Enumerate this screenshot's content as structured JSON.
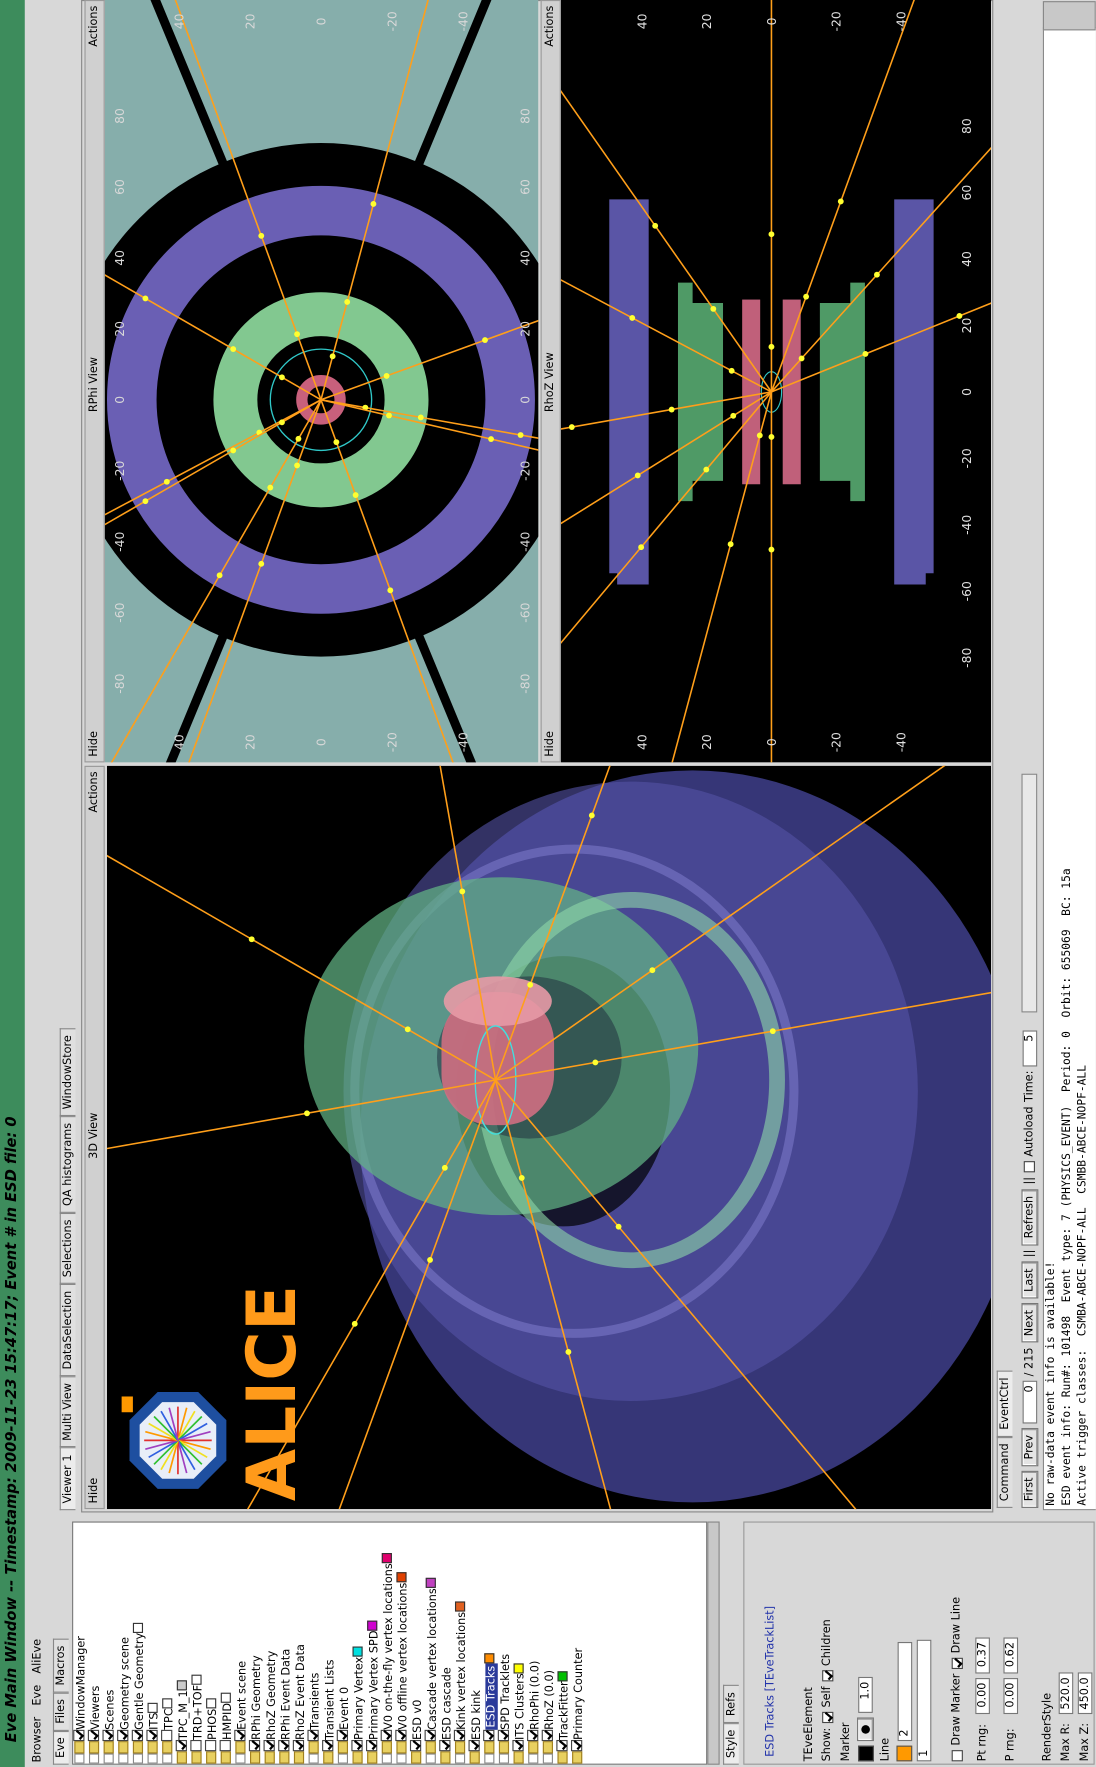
{
  "window": {
    "title": "Eve Main Window -- Timestamp: 2009-11-23 15:47:17; Event # in ESD file: 0",
    "menu": [
      "Browser",
      "Eve",
      "AliEve"
    ]
  },
  "left_panel": {
    "tabs": [
      "Eve",
      "Files",
      "Macros"
    ],
    "tree": [
      "WindowManager",
      "Viewers",
      "Scenes",
      "Geometry scene",
      "Gentle Geometry",
      "ITS",
      "TPC",
      "TPC_M_1",
      "TRD+TOF",
      "PHOS",
      "HMPID",
      "Event scene",
      "RPhi Geometry",
      "RhoZ Geometry",
      "RPhi Event Data",
      "RhoZ Event Data",
      "Transients",
      "Transient Lists",
      "Event 0",
      "Primary Vertex",
      "Primary Vertex SPD",
      "V0 on-the-fly vertex locations",
      "V0 offline vertex locations",
      "ESD v0",
      "Cascade vertex locations",
      "ESD cascade",
      "Kink vertex locations",
      "ESD kink",
      "ESD Tracks",
      "SPD Tracklets",
      "ITS Clusters",
      "RhoPhi (0.0)",
      "RhoZ (0.0)",
      "TrackFitter",
      "Primary Counter"
    ],
    "editor": {
      "tabs": [
        "Style",
        "Refs"
      ],
      "object": "ESD Tracks [TEveTrackList]",
      "class": "TEveElement",
      "show": "Show:",
      "self": "Self",
      "children": "Children",
      "marker": "Marker",
      "marker_size": "1.0",
      "line": "Line",
      "line_width": "2",
      "line_style": "1",
      "draw_marker": "Draw Marker",
      "draw_line": "Draw Line",
      "pt_label": "Pt rng:",
      "pt_min": "0.00",
      "pt_max": "0.37",
      "p_label": "P rng:",
      "p_min": "0.00",
      "p_max": "0.62",
      "render_style": "RenderStyle",
      "max_r_label": "Max R:",
      "max_r": "520.0",
      "max_z_label": "Max Z:",
      "max_z": "450.0"
    }
  },
  "viewer_tabs": [
    "Viewer 1",
    "Multi View",
    "DataSelection",
    "Selections",
    "QA histograms",
    "WindowStore"
  ],
  "views": {
    "hide": "Hide",
    "actions": "Actions",
    "view3d": "3D View",
    "rphi": "RPhi View",
    "rhoz": "RhoZ View",
    "logo": "ALICE"
  },
  "rphi": {
    "x_ticks": [
      -80,
      -60,
      -40,
      -20,
      0,
      20,
      40,
      60,
      80
    ],
    "y_ticks": [
      40,
      20,
      0,
      -20,
      -40
    ]
  },
  "rhoz": {
    "x_ticks": [
      -80,
      -60,
      -40,
      -20,
      0,
      20,
      40,
      60,
      80
    ],
    "y_ticks": [
      40,
      20,
      0,
      -20,
      -40
    ]
  },
  "bottom": {
    "tabs": [
      "Command",
      "EventCtrl"
    ],
    "first": "First",
    "prev": "Prev",
    "event": "0",
    "total": "/ 215",
    "next": "Next",
    "last": "Last",
    "separator": "||",
    "refresh": "Refresh",
    "autoload": "Autoload",
    "time_label": "Time:",
    "time": "5",
    "log": [
      "No raw-data event info is available!",
      "ESD event info: Run#: 101498  Event type: 7 (PHYSICS_EVENT)  Period: 0  Orbit: 655069  BC: 15a",
      "Active trigger classes:  CSMBA-ABCE-NOPF-ALL  CSMBB-ABCE-NOPF-ALL"
    ]
  }
}
